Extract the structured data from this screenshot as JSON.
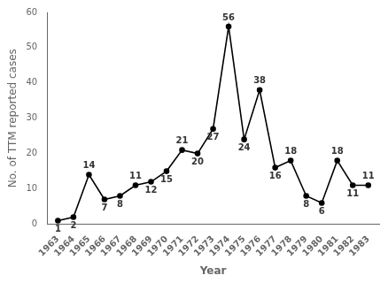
{
  "chart_data": {
    "type": "line",
    "x": [
      1963,
      1964,
      1965,
      1966,
      1967,
      1968,
      1969,
      1970,
      1971,
      1972,
      1973,
      1974,
      1975,
      1976,
      1977,
      1978,
      1979,
      1980,
      1981,
      1982,
      1983
    ],
    "values": [
      1,
      2,
      14,
      7,
      8,
      11,
      12,
      15,
      21,
      20,
      27,
      56,
      24,
      38,
      16,
      18,
      8,
      6,
      18,
      11,
      11
    ],
    "color": "#000000",
    "marker": "circle",
    "xlabel": "Year",
    "ylabel": "No. of TTM reported cases",
    "xlim": [
      1962.3,
      1983.7
    ],
    "xticks": [
      1963,
      1964,
      1965,
      1966,
      1967,
      1968,
      1969,
      1970,
      1971,
      1972,
      1973,
      1974,
      1975,
      1976,
      1977,
      1978,
      1979,
      1980,
      1981,
      1982,
      1983
    ],
    "ylim": [
      0,
      60
    ],
    "yticks": [
      0,
      10,
      20,
      30,
      40,
      50,
      60
    ],
    "grid": false,
    "data_labels": true
  }
}
